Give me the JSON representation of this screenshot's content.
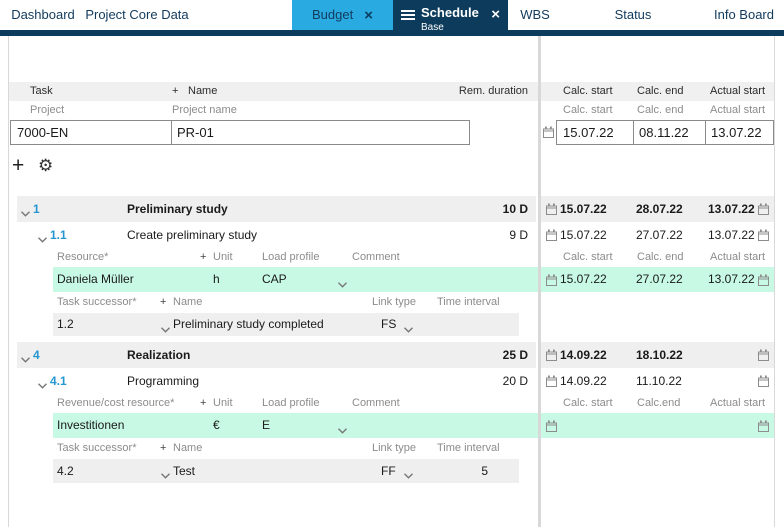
{
  "colors": {
    "accent_cyan": "#29abe2",
    "navy": "#0d3b5c",
    "row_green": "#c7f9e4",
    "row_gray": "#efefef"
  },
  "icons": {
    "add": "+",
    "settings": "⚙",
    "close": "×"
  },
  "tab_bar": {
    "tabs": [
      {
        "label": "Dashboard"
      },
      {
        "label": "Project Core Data"
      },
      {
        "label": "Budget"
      },
      {
        "label": "Schedule",
        "sublabel": "Base"
      },
      {
        "label": "WBS"
      },
      {
        "label": "Status"
      },
      {
        "label": "Info Board"
      }
    ]
  },
  "left_panel": {
    "header": {
      "task": "Task",
      "plus": "+",
      "name": "Name",
      "rem_duration": "Rem. duration"
    },
    "project_labels": {
      "task": "Project",
      "name": "Project name"
    },
    "project": {
      "id": "7000-EN",
      "name": "PR-01"
    }
  },
  "right_panel": {
    "header": {
      "calc_start": "Calc. start",
      "calc_end": "Calc. end",
      "actual_start": "Actual start"
    },
    "sub_header": {
      "calc_start": "Calc. start",
      "calc_end": "Calc. end",
      "actual_start": "Actual start"
    },
    "project_dates": {
      "calc_start": "15.07.22",
      "calc_end": "08.11.22",
      "actual_start": "13.07.22"
    }
  },
  "sections": [
    {
      "row": {
        "number": "1",
        "title": "Preliminary study",
        "duration": "10 D",
        "calc_start": "15.07.22",
        "calc_end": "28.07.22",
        "actual_start": "13.07.22"
      },
      "child": {
        "number": "1.1",
        "title": "Create preliminary study",
        "duration": "9 D",
        "calc_start": "15.07.22",
        "calc_end": "27.07.22",
        "actual_start": "13.07.22"
      },
      "resource_labels": {
        "label": "Resource*",
        "plus": "+",
        "unit": "Unit",
        "load_profile": "Load profile",
        "comment": "Comment"
      },
      "date_labels": {
        "calc_start": "Calc. start",
        "calc_end": "Calc. end",
        "actual_start": "Actual start"
      },
      "resource": {
        "name": "Daniela Müller",
        "unit": "h",
        "load_profile": "CAP",
        "calc_start": "15.07.22",
        "calc_end": "27.07.22",
        "actual_start": "13.07.22"
      },
      "successor_labels": {
        "label": "Task successor*",
        "plus": "+",
        "name": "Name",
        "link_type": "Link type",
        "time_interval": "Time interval"
      },
      "successor": {
        "id": "1.2",
        "name": "Preliminary study completed",
        "link_type": "FS",
        "time_interval": ""
      }
    },
    {
      "row": {
        "number": "4",
        "title": "Realization",
        "duration": "25 D",
        "calc_start": "14.09.22",
        "calc_end": "18.10.22",
        "actual_start": ""
      },
      "child": {
        "number": "4.1",
        "title": "Programming",
        "duration": "20 D",
        "calc_start": "14.09.22",
        "calc_end": "11.10.22",
        "actual_start": ""
      },
      "resource_labels": {
        "label": "Revenue/cost resource*",
        "plus": "+",
        "unit": "Unit",
        "load_profile": "Load profile",
        "comment": "Comment"
      },
      "date_labels": {
        "calc_start": "Calc. start",
        "calc_end": "Calc.end",
        "actual_start": "Actual start"
      },
      "resource": {
        "name": "Investitionen",
        "unit": "€",
        "load_profile": "E",
        "calc_start": "",
        "calc_end": "",
        "actual_start": ""
      },
      "successor_labels": {
        "label": "Task successor*",
        "plus": "+",
        "name": "Name",
        "link_type": "Link type",
        "time_interval": "Time interval"
      },
      "successor": {
        "id": "4.2",
        "name": "Test",
        "link_type": "FF",
        "time_interval": "5"
      }
    }
  ]
}
